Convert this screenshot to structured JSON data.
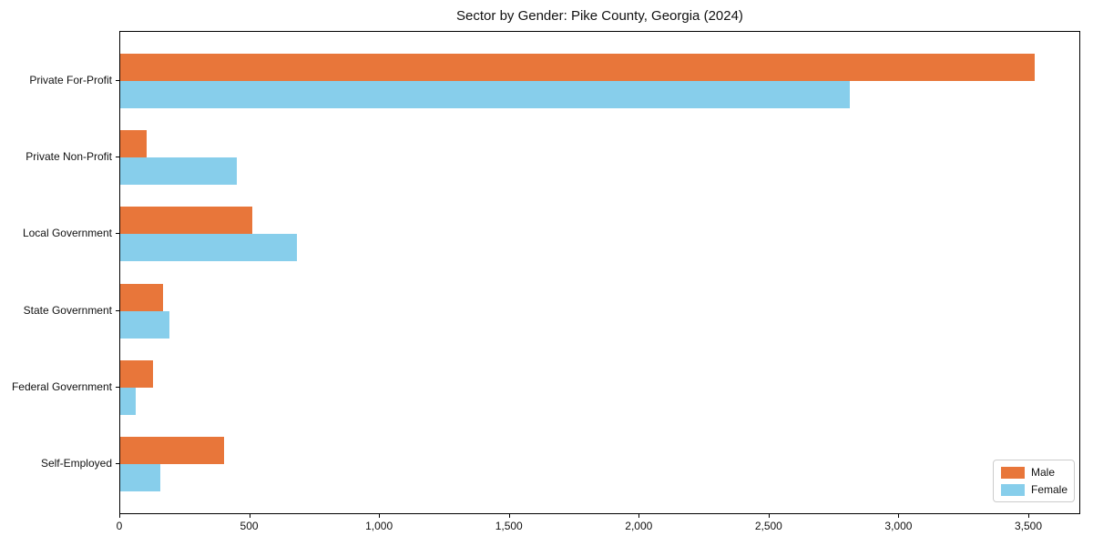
{
  "chart_data": {
    "type": "bar",
    "orientation": "horizontal",
    "title": "Sector by Gender: Pike County, Georgia (2024)",
    "categories": [
      "Private For-Profit",
      "Private Non-Profit",
      "Local Government",
      "State Government",
      "Federal Government",
      "Self-Employed"
    ],
    "series": [
      {
        "name": "Male",
        "color": "#e8763a",
        "values": [
          3520,
          100,
          510,
          165,
          125,
          400
        ]
      },
      {
        "name": "Female",
        "color": "#87ceeb",
        "values": [
          2810,
          450,
          680,
          190,
          60,
          155
        ]
      }
    ],
    "xlabel": "",
    "ylabel": "",
    "xlim": [
      0,
      3675
    ],
    "xtick_values": [
      0,
      500,
      1000,
      1500,
      2000,
      2500,
      3000,
      3500
    ],
    "xtick_labels": [
      "0",
      "500",
      "1,000",
      "1,500",
      "2,000",
      "2,500",
      "3,000",
      "3,500"
    ],
    "grid": false,
    "legend_position": "lower right"
  }
}
